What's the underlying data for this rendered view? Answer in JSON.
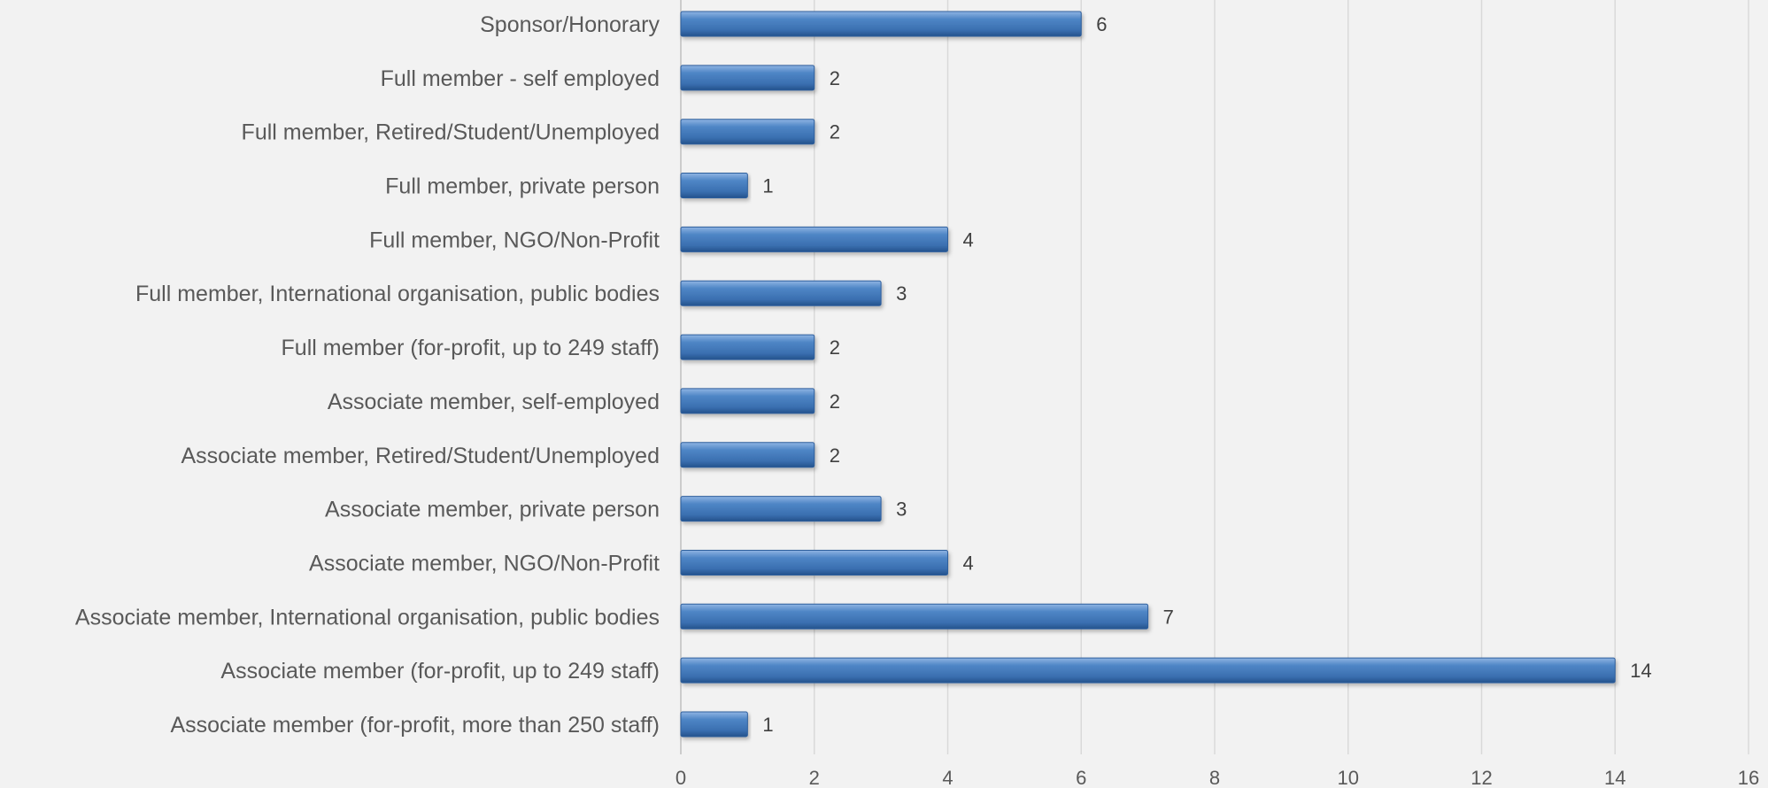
{
  "chart_data": {
    "type": "bar",
    "orientation": "horizontal",
    "title": "",
    "xlabel": "",
    "ylabel": "",
    "xlim": [
      0,
      16
    ],
    "x_ticks": [
      0,
      2,
      4,
      6,
      8,
      10,
      12,
      14,
      16
    ],
    "grid": "vertical",
    "legend": "none",
    "bar_color": "#4a7ebb",
    "categories": [
      "Sponsor/Honorary",
      "Full member - self employed",
      "Full member, Retired/Student/Unemployed",
      "Full member, private person",
      "Full member, NGO/Non-Profit",
      "Full member, International organisation, public bodies",
      "Full member (for-profit, up to 249 staff)",
      "Associate member, self-employed",
      "Associate member, Retired/Student/Unemployed",
      "Associate member, private person",
      "Associate member, NGO/Non-Profit",
      "Associate member, International organisation, public bodies",
      "Associate member (for-profit, up to 249 staff)",
      "Associate member (for-profit, more than 250 staff)"
    ],
    "values": [
      6,
      2,
      2,
      1,
      4,
      3,
      2,
      2,
      2,
      3,
      4,
      7,
      14,
      1
    ]
  }
}
